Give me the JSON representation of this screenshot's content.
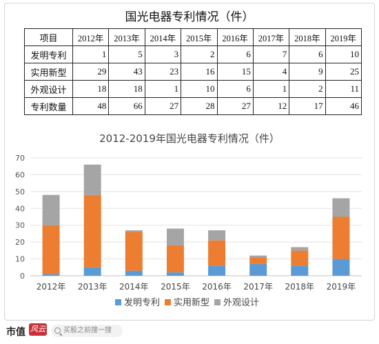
{
  "table": {
    "title": "国光电器专利情况（件）",
    "header": [
      "项目",
      "2012年",
      "2013年",
      "2014年",
      "2015年",
      "2016年",
      "2017年",
      "2018年",
      "2019年"
    ],
    "rows": [
      {
        "label": "发明专利",
        "values": [
          1,
          5,
          3,
          2,
          6,
          7,
          6,
          10
        ]
      },
      {
        "label": "实用新型",
        "values": [
          29,
          43,
          23,
          16,
          15,
          4,
          9,
          25
        ]
      },
      {
        "label": "外观设计",
        "values": [
          18,
          18,
          1,
          10,
          6,
          1,
          2,
          11
        ]
      },
      {
        "label": "专利数量",
        "values": [
          48,
          66,
          27,
          28,
          27,
          12,
          17,
          46
        ]
      }
    ]
  },
  "chart_data": {
    "type": "bar",
    "stacked": true,
    "title": "2012-2019年国光电器专利情况（件）",
    "categories": [
      "2012年",
      "2013年",
      "2014年",
      "2015年",
      "2016年",
      "2017年",
      "2018年",
      "2019年"
    ],
    "series": [
      {
        "name": "发明专利",
        "values": [
          1,
          5,
          3,
          2,
          6,
          7,
          6,
          10
        ],
        "color": "#5b9bd5"
      },
      {
        "name": "实用新型",
        "values": [
          29,
          43,
          23,
          16,
          15,
          4,
          9,
          25
        ],
        "color": "#ed7d31"
      },
      {
        "name": "外观设计",
        "values": [
          18,
          18,
          1,
          10,
          6,
          1,
          2,
          11
        ],
        "color": "#a5a5a5"
      }
    ],
    "ylim": [
      0,
      70
    ],
    "yticks": [
      0,
      10,
      20,
      30,
      40,
      50,
      60,
      70
    ],
    "grid": true,
    "legend": "bottom"
  },
  "footer": {
    "brand": "市值",
    "brand_mark": "风云",
    "search_placeholder": "买股之前搜一搜"
  }
}
